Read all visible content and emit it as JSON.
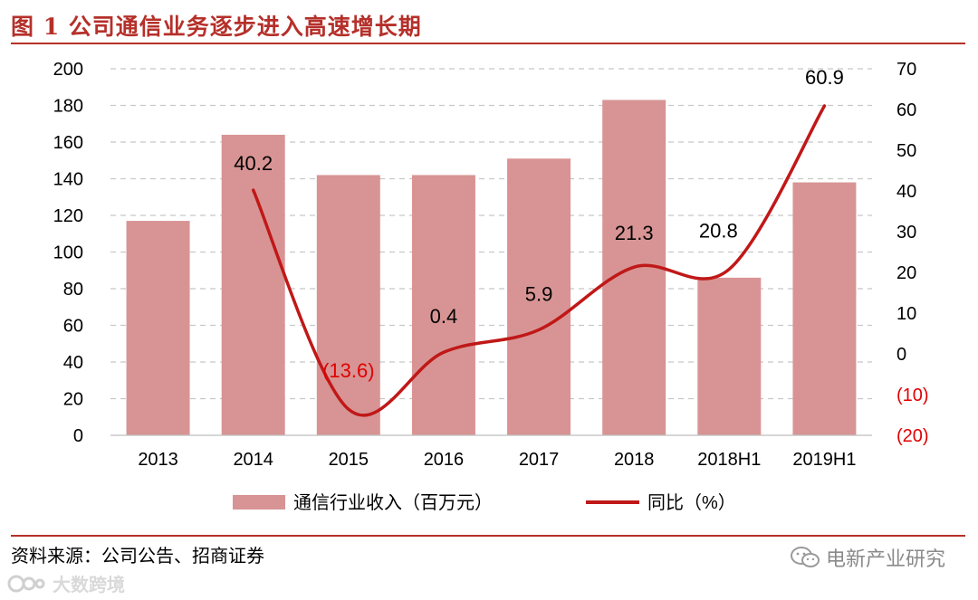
{
  "title": "图 1 公司通信业务逐步进入高速增长期",
  "source": "资料来源：公司公告、招商证券",
  "watermark_right": "电新产业研究",
  "watermark_left": "大数跨境",
  "colors": {
    "bar": "#d89494",
    "line": "#c01818",
    "negative_label": "#e00000",
    "title": "#b5302a"
  },
  "chart_data": {
    "type": "bar+line",
    "categories": [
      "2013",
      "2014",
      "2015",
      "2016",
      "2017",
      "2018",
      "2018H1",
      "2019H1"
    ],
    "series": [
      {
        "name": "通信行业收入（百万元）",
        "type": "bar",
        "axis": "left",
        "values": [
          117,
          164,
          142,
          142,
          151,
          183,
          86,
          138
        ]
      },
      {
        "name": "同比（%）",
        "type": "line",
        "axis": "right",
        "values": [
          null,
          40.2,
          -13.6,
          0.4,
          5.9,
          21.3,
          20.8,
          60.9
        ],
        "labels": [
          "",
          "40.2",
          "(13.6)",
          "0.4",
          "5.9",
          "21.3",
          "20.8",
          "60.9"
        ]
      }
    ],
    "y_left": {
      "min": 0,
      "max": 200,
      "ticks": [
        0,
        20,
        40,
        60,
        80,
        100,
        120,
        140,
        160,
        180,
        200
      ]
    },
    "y_right": {
      "min": -20,
      "max": 70,
      "ticks": [
        70,
        60,
        50,
        40,
        30,
        20,
        10,
        0,
        -10,
        -20
      ],
      "tick_labels": [
        "70",
        "60",
        "50",
        "40",
        "30",
        "20",
        "10",
        "0",
        "(10)",
        "(20)"
      ]
    },
    "grid": "dashed-horizontal",
    "legend": "bottom"
  }
}
